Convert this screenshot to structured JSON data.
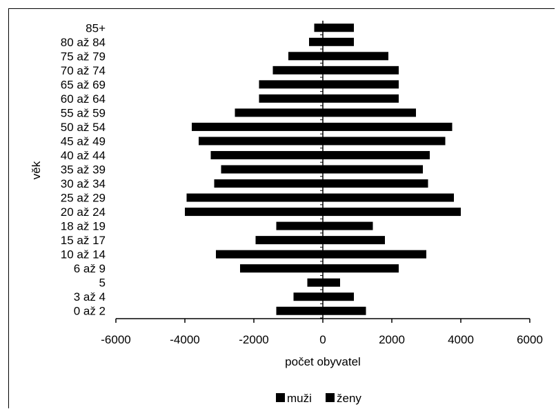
{
  "chart_data": {
    "type": "bar",
    "orientation": "horizontal",
    "stacked": true,
    "categories": [
      "0 až 2",
      "3 až 4",
      "5",
      "6 až 9",
      "10 až 14",
      "15 až 17",
      "18 až 19",
      "20 až 24",
      "25 až 29",
      "30 až 34",
      "35 až 39",
      "40 až 44",
      "45 až 49",
      "50 až 54",
      "55 až 59",
      "60 až 64",
      "65 až 69",
      "70 až 74",
      "75 až 79",
      "80 až 84",
      "85+"
    ],
    "series": [
      {
        "name": "muži",
        "color": "#000000",
        "values": [
          -1350,
          -850,
          -450,
          -2400,
          -3100,
          -1950,
          -1350,
          -4000,
          -3950,
          -3150,
          -2950,
          -3250,
          -3600,
          -3800,
          -2550,
          -1850,
          -1850,
          -1450,
          -1000,
          -400,
          -250
        ]
      },
      {
        "name": "ženy",
        "color": "#000000",
        "values": [
          1250,
          900,
          500,
          2200,
          3000,
          1800,
          1450,
          4000,
          3800,
          3050,
          2900,
          3100,
          3550,
          3750,
          2700,
          2200,
          2200,
          2200,
          1900,
          900,
          900
        ]
      }
    ],
    "xlabel": "počet obyvatel",
    "ylabel": "věk",
    "xlim": [
      -6000,
      6000
    ],
    "xticks": [
      "-6000",
      "-4000",
      "-2000",
      "0",
      "2000",
      "4000",
      "6000"
    ],
    "grid": false,
    "legend_position": "bottom"
  }
}
